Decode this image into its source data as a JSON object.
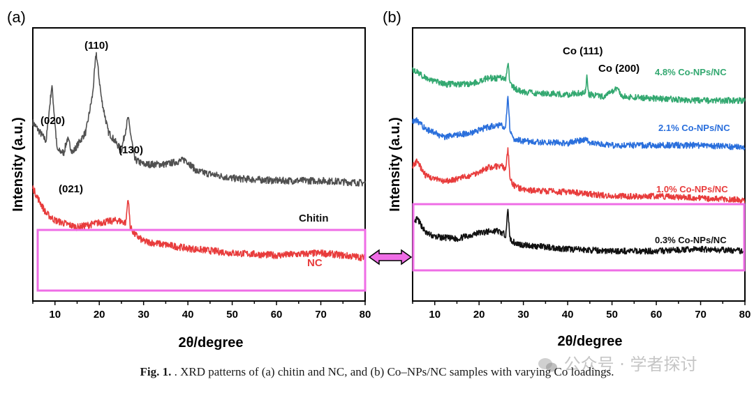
{
  "caption": {
    "prefix": "Fig. 1.",
    "text": " . XRD patterns of (a) chitin and NC, and (b) Co–NPs/NC samples with varying Co loadings."
  },
  "watermark": {
    "icon": "wechat-icon",
    "text": "公众号 · 学者探讨"
  },
  "colors": {
    "chitin": "#505050",
    "nc": "#e83c3c",
    "black": "#111111",
    "red": "#e83c3c",
    "blue": "#2a6fdc",
    "green": "#33a870",
    "highlight": "#ef6de6"
  },
  "chart_data": [
    {
      "panel": "(a)",
      "type": "line",
      "xlabel": "2θ/degree",
      "ylabel": "Intensity (a.u.)",
      "xlim": [
        5,
        80
      ],
      "xticks": [
        "10",
        "20",
        "30",
        "40",
        "50",
        "60",
        "70",
        "80"
      ],
      "grid": false,
      "series": [
        {
          "name": "Chitin",
          "x": [
            5,
            8,
            9.3,
            10.5,
            12,
            12.8,
            14,
            17,
            18.5,
            19.3,
            20.5,
            22,
            25,
            26.5,
            28,
            30,
            35,
            39.5,
            42,
            50,
            60,
            70,
            80
          ],
          "y": [
            0.7,
            0.62,
            0.86,
            0.58,
            0.57,
            0.63,
            0.57,
            0.66,
            0.82,
            1.0,
            0.8,
            0.66,
            0.58,
            0.72,
            0.54,
            0.52,
            0.52,
            0.54,
            0.49,
            0.46,
            0.45,
            0.45,
            0.44
          ]
        },
        {
          "name": "NC",
          "x": [
            5,
            6,
            8,
            10,
            15,
            20,
            24,
            26,
            26.5,
            27,
            28,
            30,
            40,
            50,
            60,
            70,
            80
          ],
          "y": [
            0.42,
            0.38,
            0.31,
            0.28,
            0.25,
            0.27,
            0.28,
            0.27,
            0.38,
            0.25,
            0.22,
            0.19,
            0.16,
            0.14,
            0.13,
            0.14,
            0.12
          ]
        }
      ],
      "annotations": [
        "(020)",
        "(021)",
        "(110)",
        "(130)"
      ],
      "highlight": "magenta rectangle around NC curve"
    },
    {
      "panel": "(b)",
      "type": "line",
      "xlabel": "2θ/degree",
      "ylabel": "Intensity (a.u.)",
      "xlim": [
        5,
        80
      ],
      "xticks": [
        "10",
        "20",
        "30",
        "40",
        "50",
        "60",
        "70",
        "80"
      ],
      "grid": false,
      "series": [
        {
          "name": "0.3% Co-NPs/NC",
          "x": [
            5,
            6,
            8,
            10,
            15,
            20,
            24,
            26,
            26.5,
            27,
            28,
            30,
            40,
            50,
            60,
            70,
            80
          ],
          "y": [
            0.16,
            0.2,
            0.13,
            0.11,
            0.1,
            0.13,
            0.14,
            0.12,
            0.24,
            0.1,
            0.08,
            0.07,
            0.05,
            0.04,
            0.04,
            0.05,
            0.04
          ]
        },
        {
          "name": "1.0% Co-NPs/NC",
          "x": [
            5,
            6,
            8,
            12,
            18,
            22,
            25,
            26,
            26.5,
            27,
            28,
            30,
            40,
            50,
            60,
            70,
            80
          ],
          "y": [
            0.46,
            0.48,
            0.41,
            0.38,
            0.41,
            0.45,
            0.46,
            0.44,
            0.55,
            0.39,
            0.36,
            0.34,
            0.33,
            0.31,
            0.31,
            0.3,
            0.29
          ]
        },
        {
          "name": "2.1% Co-NPs/NC",
          "x": [
            5,
            6,
            8,
            12,
            18,
            22,
            25,
            26,
            26.5,
            27,
            28,
            30,
            40,
            44.3,
            45,
            50,
            60,
            70,
            80
          ],
          "y": [
            0.68,
            0.68,
            0.64,
            0.6,
            0.62,
            0.65,
            0.66,
            0.65,
            0.8,
            0.62,
            0.59,
            0.58,
            0.57,
            0.59,
            0.57,
            0.56,
            0.56,
            0.56,
            0.55
          ]
        },
        {
          "name": "4.8% Co-NPs/NC",
          "x": [
            5,
            6,
            8,
            12,
            18,
            22,
            25,
            26,
            26.5,
            27,
            28,
            30,
            40,
            44,
            44.3,
            44.7,
            48,
            51.3,
            52,
            60,
            70,
            80
          ],
          "y": [
            0.93,
            0.92,
            0.89,
            0.86,
            0.86,
            0.89,
            0.89,
            0.88,
            0.97,
            0.86,
            0.84,
            0.82,
            0.81,
            0.82,
            0.9,
            0.81,
            0.8,
            0.84,
            0.8,
            0.79,
            0.78,
            0.78
          ]
        }
      ],
      "annotations": [
        "Co (111)",
        "Co (200)"
      ],
      "highlight": "magenta rectangle around 0.3% Co-NPs/NC curve"
    }
  ]
}
